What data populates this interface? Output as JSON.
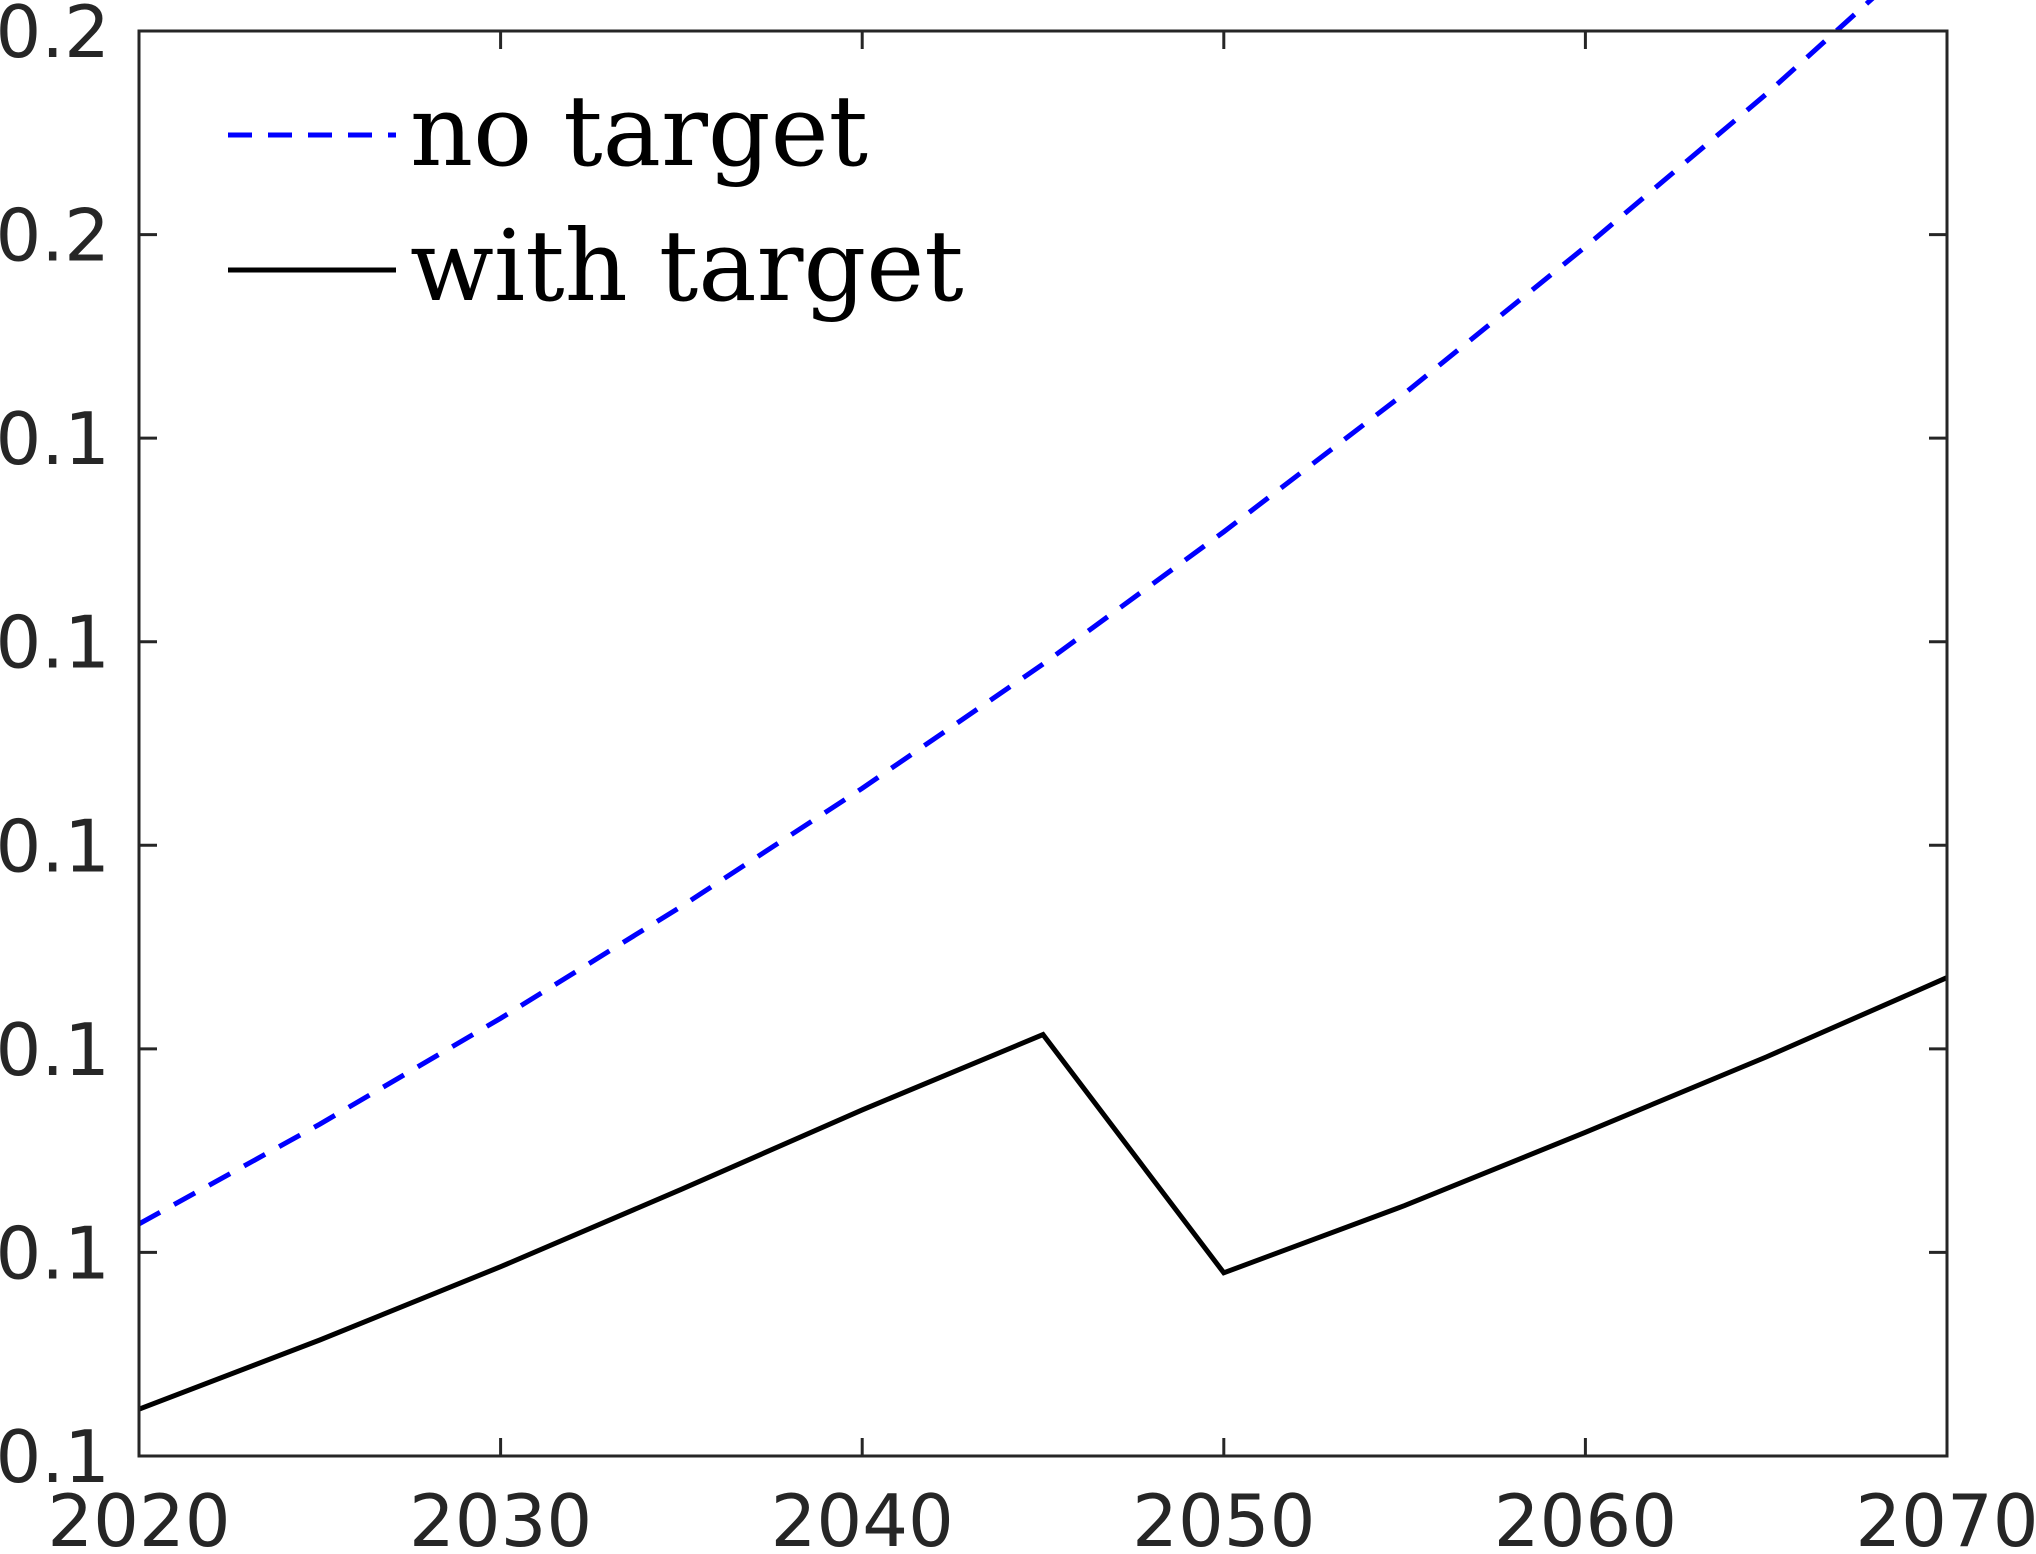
{
  "chart_data": {
    "type": "line",
    "title": "",
    "xlabel": "",
    "ylabel": "",
    "xlim": [
      2020,
      2070
    ],
    "ylim": [
      0.1,
      0.17
    ],
    "x_ticks": [
      2020,
      2030,
      2040,
      2050,
      2060,
      2070
    ],
    "x_tick_labels": [
      "2020",
      "2030",
      "2040",
      "2050",
      "2060",
      "2070"
    ],
    "y_ticks": [
      0.1,
      0.11,
      0.12,
      0.13,
      0.14,
      0.15,
      0.16,
      0.17
    ],
    "y_tick_labels": [
      "0.1",
      "0.1",
      "0.1",
      "0.1",
      "0.1",
      "0.1",
      "0.2",
      "0.2"
    ],
    "grid": false,
    "legend_position": "top-left",
    "series": [
      {
        "name": "no target",
        "color": "#0000ff",
        "style": "dashed",
        "x": [
          2020,
          2025,
          2030,
          2035,
          2040,
          2045,
          2050,
          2055,
          2060,
          2065,
          2070
        ],
        "y": [
          0.1114,
          0.1163,
          0.1215,
          0.127,
          0.1328,
          0.1389,
          0.1454,
          0.1522,
          0.1594,
          0.1669,
          0.1749
        ]
      },
      {
        "name": "with target",
        "color": "#000000",
        "style": "solid",
        "x": [
          2020,
          2025,
          2030,
          2035,
          2040,
          2045,
          2050,
          2055,
          2060,
          2065,
          2070
        ],
        "y": [
          0.1023,
          0.1057,
          0.1093,
          0.1131,
          0.117,
          0.1207,
          0.109,
          0.1123,
          0.1159,
          0.1196,
          0.1235
        ]
      }
    ]
  }
}
